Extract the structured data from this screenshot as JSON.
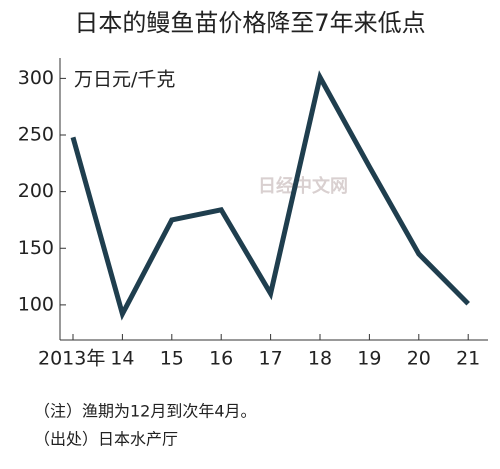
{
  "chart_data": {
    "type": "line",
    "title": "日本的鳗鱼苗价格降至7年来低点",
    "y_axis_label": "万日元/千克",
    "categories": [
      "2013年",
      "14",
      "15",
      "16",
      "17",
      "18",
      "19",
      "20",
      "21"
    ],
    "series": [
      {
        "name": "鳗鱼苗价格",
        "color": "#1f3e4e",
        "values": [
          248,
          92,
          175,
          184,
          110,
          301,
          222,
          145,
          101
        ]
      }
    ],
    "ylim": [
      69,
      318
    ],
    "yticks": [
      100,
      150,
      200,
      250,
      300
    ],
    "grid": false,
    "annotations": [
      "日经中文网"
    ],
    "notes": [
      "（注）渔期为12月到次年4月。",
      "（出处）日本水产厅"
    ]
  }
}
